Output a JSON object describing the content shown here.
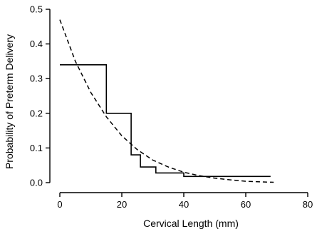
{
  "chart_data": {
    "type": "line",
    "xlabel": "Cervical Length (mm)",
    "ylabel": "Probability of Preterm Delivery",
    "xlim": [
      0,
      80
    ],
    "ylim": [
      0,
      0.5
    ],
    "x_ticks": [
      0,
      20,
      40,
      60,
      80
    ],
    "y_ticks": [
      0.0,
      0.1,
      0.2,
      0.3,
      0.4,
      0.5
    ],
    "x_tick_labels": [
      "0",
      "20",
      "40",
      "60",
      "80"
    ],
    "y_tick_labels": [
      "0.0",
      "0.1",
      "0.2",
      "0.3",
      "0.4",
      "0.5"
    ],
    "grid": false,
    "series": [
      {
        "style": "solid-step",
        "x": [
          0,
          15,
          15,
          23,
          23,
          26,
          26,
          31,
          31,
          40,
          40,
          68
        ],
        "y": [
          0.34,
          0.34,
          0.2,
          0.2,
          0.08,
          0.08,
          0.045,
          0.045,
          0.028,
          0.028,
          0.018,
          0.018
        ]
      },
      {
        "style": "dashed-curve",
        "x": [
          0,
          5,
          10,
          15,
          20,
          25,
          30,
          35,
          40,
          45,
          50,
          55,
          60,
          65,
          69
        ],
        "y": [
          0.47,
          0.35,
          0.26,
          0.19,
          0.135,
          0.095,
          0.065,
          0.045,
          0.03,
          0.02,
          0.013,
          0.008,
          0.004,
          0.002,
          0.001
        ]
      }
    ]
  }
}
